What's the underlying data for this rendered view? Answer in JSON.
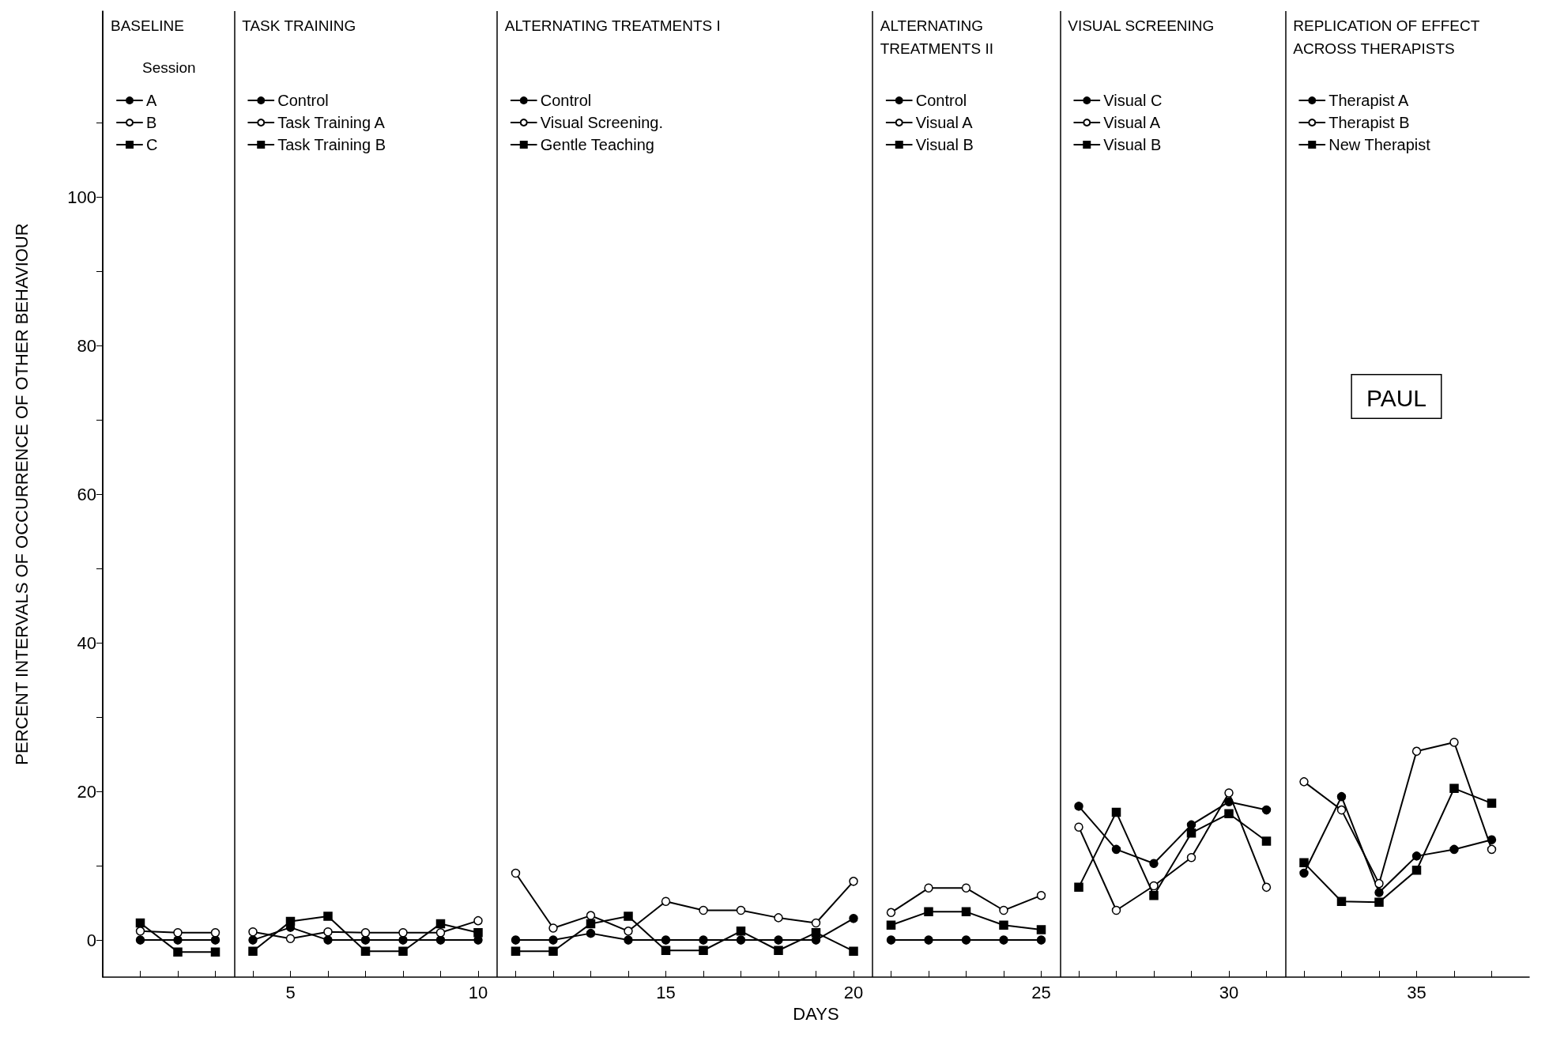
{
  "chart_data": {
    "type": "line",
    "xlabel": "DAYS",
    "ylabel": "PERCENT INTERVALS OF OCCURRENCE OF OTHER BEHAVIOUR",
    "legend_title": "Session",
    "legend": "top left",
    "grid": false,
    "xlim": [
      0,
      38
    ],
    "xticks": [
      {
        "value": 1,
        "label": null
      },
      {
        "value": 2,
        "label": null
      },
      {
        "value": 3,
        "label": null
      },
      {
        "value": 4,
        "label": null
      },
      5,
      {
        "value": 6,
        "label": null
      },
      {
        "value": 7,
        "label": null
      },
      {
        "value": 8,
        "label": null
      },
      {
        "value": 9,
        "label": null
      },
      10,
      {
        "value": 11,
        "label": null
      },
      {
        "value": 12,
        "label": null
      },
      {
        "value": 13,
        "label": null
      },
      {
        "value": 14,
        "label": null
      },
      15,
      {
        "value": 16,
        "label": null
      },
      {
        "value": 17,
        "label": null
      },
      {
        "value": 18,
        "label": null
      },
      {
        "value": 19,
        "label": null
      },
      20,
      {
        "value": 21,
        "label": null
      },
      {
        "value": 22,
        "label": null
      },
      {
        "value": 23,
        "label": null
      },
      {
        "value": 24,
        "label": null
      },
      25,
      {
        "value": 26,
        "label": null
      },
      {
        "value": 27,
        "label": null
      },
      {
        "value": 28,
        "label": null
      },
      {
        "value": 29,
        "label": null
      },
      30,
      {
        "value": 31,
        "label": null
      },
      {
        "value": 32,
        "label": null
      },
      {
        "value": 33,
        "label": null
      },
      {
        "value": 34,
        "label": null
      },
      35,
      {
        "value": 36,
        "label": null
      },
      {
        "value": 37,
        "label": null
      }
    ],
    "ylim": [
      -5,
      125
    ],
    "yticks": [
      0,
      {
        "value": 10,
        "label": null
      },
      20,
      {
        "value": 30,
        "label": null
      },
      40,
      {
        "value": 50,
        "label": null
      },
      60,
      {
        "value": 70,
        "label": null
      },
      80,
      {
        "value": 90,
        "label": null
      },
      100,
      {
        "value": 110,
        "label": null
      }
    ],
    "annotations": [
      "PAUL"
    ],
    "ref_lines": [
      {
        "axis": "x",
        "value": 0,
        "label": "BASELINE"
      },
      {
        "axis": "x",
        "value": 3.5,
        "label": "TASK TRAINING"
      },
      {
        "axis": "x",
        "value": 10.5,
        "label": "ALTERNATING TREATMENTS I"
      },
      {
        "axis": "x",
        "value": 20.5,
        "label": "ALTERNATING TREATMENTS II"
      },
      {
        "axis": "x",
        "value": 25.5,
        "label": "VISUAL SCREENING"
      },
      {
        "axis": "x",
        "value": 31.5,
        "label": "REPLICATION OF EFFECT ACROSS THERAPISTS"
      }
    ],
    "series": [
      {
        "name": "A",
        "color": "#000000",
        "marker": "circle",
        "x": [
          1,
          2,
          3
        ],
        "values": [
          0,
          0,
          0
        ]
      },
      {
        "name": "B",
        "color": "#000000",
        "marker": "open circle",
        "x": [
          1,
          2,
          3
        ],
        "values": [
          1.2,
          1,
          1
        ]
      },
      {
        "name": "C",
        "color": "#000000",
        "marker": "square",
        "x": [
          1,
          2,
          3
        ],
        "values": [
          2.3,
          -1.6,
          -1.6
        ]
      },
      {
        "name": "Control",
        "color": "#000000",
        "marker": "circle",
        "x": [
          4,
          5,
          6,
          7,
          8,
          9,
          10
        ],
        "values": [
          0,
          1.7,
          0,
          0,
          0,
          0,
          0
        ]
      },
      {
        "name": "Task Training A",
        "color": "#000000",
        "marker": "open circle",
        "x": [
          4,
          5,
          6,
          7,
          8,
          9,
          10
        ],
        "values": [
          1.1,
          0.2,
          1.1,
          1,
          1,
          1,
          2.6
        ]
      },
      {
        "name": "Task Training B",
        "color": "#000000",
        "marker": "square",
        "x": [
          4,
          5,
          6,
          7,
          8,
          9,
          10
        ],
        "values": [
          -1.5,
          2.5,
          3.2,
          -1.5,
          -1.5,
          2.2,
          1
        ]
      },
      {
        "name": "Control",
        "color": "#000000",
        "marker": "circle",
        "x": [
          11,
          12,
          13,
          14,
          15,
          16,
          17,
          18,
          19,
          20
        ],
        "values": [
          0,
          0,
          0.9,
          0,
          0,
          0,
          0,
          0,
          0,
          2.9
        ]
      },
      {
        "name": "Visual Screening.",
        "color": "#000000",
        "marker": "open circle",
        "x": [
          11,
          12,
          13,
          14,
          15,
          16,
          17,
          18,
          19,
          20
        ],
        "values": [
          9,
          1.6,
          3.3,
          1.2,
          5.2,
          4,
          4,
          3,
          2.3,
          7.9
        ]
      },
      {
        "name": "Gentle Teaching",
        "color": "#000000",
        "marker": "square",
        "x": [
          11,
          12,
          13,
          14,
          15,
          16,
          17,
          18,
          19,
          20
        ],
        "values": [
          -1.5,
          -1.5,
          2.2,
          3.2,
          -1.4,
          -1.4,
          1.2,
          -1.4,
          1,
          -1.5
        ]
      },
      {
        "name": "Control",
        "color": "#000000",
        "marker": "circle",
        "x": [
          21,
          22,
          23,
          24,
          25
        ],
        "values": [
          0,
          0,
          0,
          0,
          0
        ]
      },
      {
        "name": "Visual A",
        "color": "#000000",
        "marker": "open circle",
        "x": [
          21,
          22,
          23,
          24,
          25
        ],
        "values": [
          3.7,
          7,
          7,
          4,
          6
        ]
      },
      {
        "name": "Visual B",
        "color": "#000000",
        "marker": "square",
        "x": [
          21,
          22,
          23,
          24,
          25
        ],
        "values": [
          2,
          3.8,
          3.8,
          2,
          1.4
        ]
      },
      {
        "name": "Visual C",
        "color": "#000000",
        "marker": "circle",
        "x": [
          26,
          27,
          28,
          29,
          30,
          31
        ],
        "values": [
          18,
          12.2,
          10.3,
          15.5,
          18.6,
          17.5
        ]
      },
      {
        "name": "Visual A",
        "color": "#000000",
        "marker": "open circle",
        "x": [
          26,
          27,
          28,
          29,
          30,
          31
        ],
        "values": [
          15.2,
          4,
          7.3,
          11.1,
          19.8,
          7.1
        ]
      },
      {
        "name": "Visual B",
        "color": "#000000",
        "marker": "square",
        "x": [
          26,
          27,
          28,
          29,
          30,
          31
        ],
        "values": [
          7.1,
          17.2,
          6,
          14.4,
          17,
          13.3
        ]
      },
      {
        "name": "Therapist A",
        "color": "#000000",
        "marker": "circle",
        "x": [
          32,
          33,
          34,
          35,
          36,
          37
        ],
        "values": [
          9,
          19.3,
          6.4,
          11.3,
          12.2,
          13.5
        ]
      },
      {
        "name": "Therapist B",
        "color": "#000000",
        "marker": "open circle",
        "x": [
          32,
          33,
          34,
          35,
          36,
          37
        ],
        "values": [
          21.3,
          17.5,
          7.6,
          25.4,
          26.6,
          12.2
        ]
      },
      {
        "name": "New Therapist",
        "color": "#000000",
        "marker": "square",
        "x": [
          32,
          33,
          34,
          35,
          36,
          37
        ],
        "values": [
          10.4,
          5.2,
          5.1,
          9.4,
          20.4,
          18.4
        ]
      }
    ]
  }
}
